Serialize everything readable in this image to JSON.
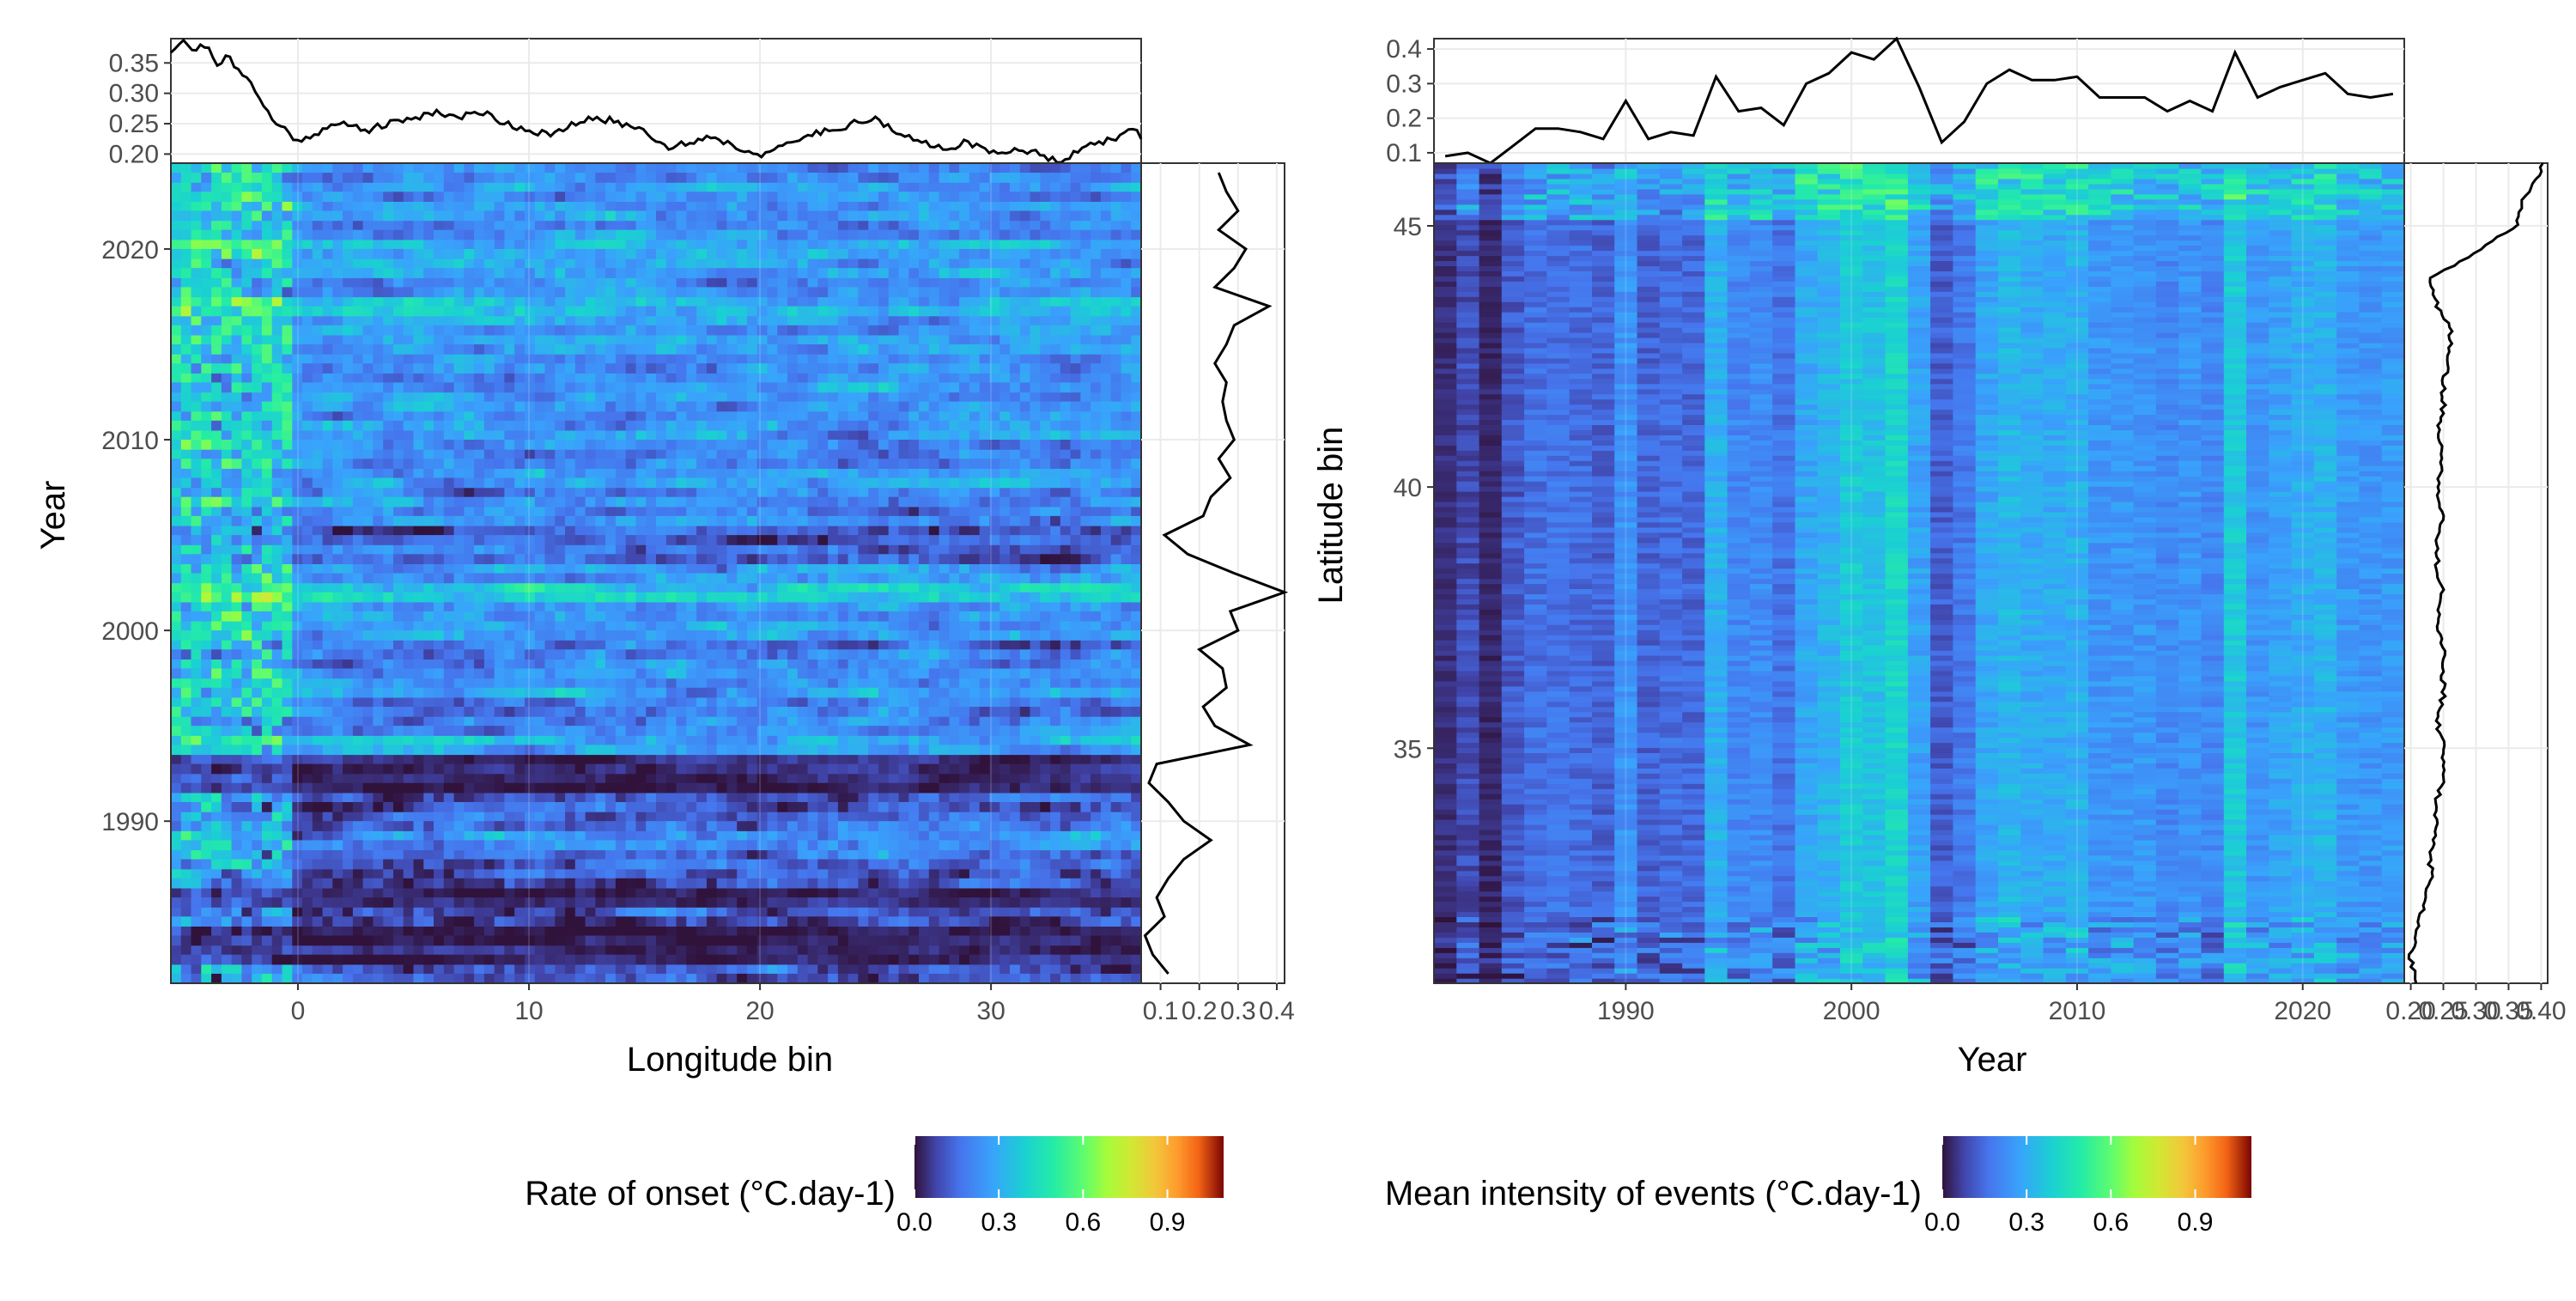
{
  "chart_data": [
    {
      "type": "heatmap",
      "panel": "left",
      "xlabel": "Longitude bin",
      "ylabel": "Year",
      "xlim": [
        -5.5,
        36.5
      ],
      "ylim": [
        1981.5,
        2024.5
      ],
      "x_ticks": [
        0,
        10,
        20,
        30
      ],
      "y_ticks": [
        1990,
        2000,
        2010,
        2020
      ],
      "colorscale": "turbo",
      "value_range": [
        0,
        1.1
      ],
      "grid": true,
      "top_marginal": {
        "type": "line",
        "description_axis": "mean by longitude bin",
        "y_ticks": [
          0.2,
          0.25,
          0.3,
          0.35
        ],
        "y_tick_labels": [
          "0.20",
          "0.25",
          "0.30",
          "0.35"
        ],
        "ylim": [
          0.185,
          0.39
        ],
        "x": [
          -5.5,
          -5,
          -4.5,
          -4,
          -3.5,
          -3,
          -2.5,
          -2,
          -1.5,
          -1,
          -0.5,
          0,
          0.5,
          1,
          2,
          3,
          4,
          5,
          6,
          7,
          8,
          9,
          10,
          11,
          12,
          13,
          14,
          15,
          16,
          17,
          18,
          19,
          20,
          21,
          22,
          23,
          24,
          25,
          26,
          27,
          28,
          29,
          30,
          31,
          32,
          33,
          34,
          35,
          36,
          36.5
        ],
        "y": [
          0.37,
          0.39,
          0.37,
          0.38,
          0.35,
          0.36,
          0.33,
          0.32,
          0.28,
          0.25,
          0.24,
          0.22,
          0.23,
          0.24,
          0.25,
          0.24,
          0.25,
          0.26,
          0.27,
          0.26,
          0.27,
          0.25,
          0.24,
          0.23,
          0.25,
          0.26,
          0.25,
          0.24,
          0.21,
          0.22,
          0.23,
          0.21,
          0.2,
          0.21,
          0.23,
          0.24,
          0.25,
          0.26,
          0.23,
          0.22,
          0.21,
          0.22,
          0.2,
          0.21,
          0.2,
          0.19,
          0.21,
          0.22,
          0.24,
          0.23
        ]
      },
      "right_marginal": {
        "type": "line",
        "description_axis": "mean by year",
        "x_ticks": [
          0.1,
          0.2,
          0.3,
          0.4
        ],
        "x_tick_labels": [
          "0.1",
          "0.2",
          "0.3",
          "0.4"
        ],
        "xlim": [
          0.05,
          0.42
        ],
        "years": [
          1982,
          1983,
          1984,
          1985,
          1986,
          1987,
          1988,
          1989,
          1990,
          1991,
          1992,
          1993,
          1994,
          1995,
          1996,
          1997,
          1998,
          1999,
          2000,
          2001,
          2002,
          2003,
          2004,
          2005,
          2006,
          2007,
          2008,
          2009,
          2010,
          2011,
          2012,
          2013,
          2014,
          2015,
          2016,
          2017,
          2018,
          2019,
          2020,
          2021,
          2022,
          2023,
          2024
        ],
        "values": [
          0.12,
          0.08,
          0.06,
          0.11,
          0.09,
          0.12,
          0.16,
          0.23,
          0.16,
          0.12,
          0.07,
          0.09,
          0.33,
          0.24,
          0.21,
          0.27,
          0.26,
          0.2,
          0.3,
          0.28,
          0.42,
          0.29,
          0.17,
          0.11,
          0.21,
          0.23,
          0.28,
          0.25,
          0.29,
          0.27,
          0.26,
          0.27,
          0.24,
          0.27,
          0.29,
          0.38,
          0.24,
          0.29,
          0.32,
          0.25,
          0.3,
          0.27,
          0.25
        ]
      },
      "legend": {
        "title": "Rate of onset (°C.day-1)",
        "ticks": [
          0.0,
          0.3,
          0.6,
          0.9
        ],
        "tick_labels": [
          "0.0",
          "0.3",
          "0.6",
          "0.9"
        ]
      }
    },
    {
      "type": "heatmap",
      "panel": "right",
      "xlabel": "Year",
      "ylabel": "Latitude bin",
      "xlim": [
        1981.5,
        2024.5
      ],
      "ylim": [
        30.5,
        46.2
      ],
      "x_ticks": [
        1990,
        2000,
        2010,
        2020
      ],
      "y_ticks": [
        35,
        40,
        45
      ],
      "colorscale": "turbo",
      "value_range": [
        0,
        1.1
      ],
      "grid": true,
      "year_means": [
        0.09,
        0.1,
        0.07,
        0.12,
        0.17,
        0.17,
        0.16,
        0.14,
        0.25,
        0.14,
        0.16,
        0.15,
        0.32,
        0.22,
        0.23,
        0.18,
        0.3,
        0.33,
        0.39,
        0.37,
        0.43,
        0.29,
        0.13,
        0.19,
        0.3,
        0.34,
        0.31,
        0.31,
        0.32,
        0.26,
        0.26,
        0.26,
        0.22,
        0.25,
        0.22,
        0.39,
        0.26,
        0.29,
        0.31,
        0.33,
        0.27,
        0.26,
        0.27
      ],
      "top_marginal": {
        "type": "line",
        "description_axis": "mean by year",
        "y_ticks": [
          0.1,
          0.2,
          0.3,
          0.4
        ],
        "y_tick_labels": [
          "0.1",
          "0.2",
          "0.3",
          "0.4"
        ],
        "ylim": [
          0.07,
          0.43
        ],
        "x": [
          1982,
          1983,
          1984,
          1985,
          1986,
          1987,
          1988,
          1989,
          1990,
          1991,
          1992,
          1993,
          1994,
          1995,
          1996,
          1997,
          1998,
          1999,
          2000,
          2001,
          2002,
          2003,
          2004,
          2005,
          2006,
          2007,
          2008,
          2009,
          2010,
          2011,
          2012,
          2013,
          2014,
          2015,
          2016,
          2017,
          2018,
          2019,
          2020,
          2021,
          2022,
          2023,
          2024
        ],
        "y": [
          0.09,
          0.1,
          0.07,
          0.12,
          0.17,
          0.17,
          0.16,
          0.14,
          0.25,
          0.14,
          0.16,
          0.15,
          0.32,
          0.22,
          0.23,
          0.18,
          0.3,
          0.33,
          0.39,
          0.37,
          0.43,
          0.29,
          0.13,
          0.19,
          0.3,
          0.34,
          0.31,
          0.31,
          0.32,
          0.26,
          0.26,
          0.26,
          0.22,
          0.25,
          0.22,
          0.39,
          0.26,
          0.29,
          0.31,
          0.33,
          0.27,
          0.26,
          0.27
        ]
      },
      "right_marginal": {
        "type": "line",
        "description_axis": "mean by latitude bin",
        "x_ticks": [
          0.2,
          0.25,
          0.3,
          0.35,
          0.4
        ],
        "x_tick_labels": [
          "0.20",
          "0.25",
          "0.30",
          "0.35",
          "0.40"
        ],
        "xlim": [
          0.19,
          0.41
        ],
        "lat": [
          30.5,
          31,
          31.5,
          32,
          32.5,
          33,
          33.5,
          34,
          34.5,
          35,
          35.5,
          36,
          36.5,
          37,
          37.5,
          38,
          38.5,
          39,
          39.5,
          40,
          40.5,
          41,
          41.5,
          42,
          42.5,
          43,
          43.5,
          44,
          44.5,
          45,
          45.5,
          46,
          46.2
        ],
        "values": [
          0.21,
          0.2,
          0.21,
          0.22,
          0.23,
          0.23,
          0.24,
          0.24,
          0.25,
          0.25,
          0.24,
          0.25,
          0.25,
          0.25,
          0.24,
          0.25,
          0.24,
          0.24,
          0.25,
          0.24,
          0.25,
          0.24,
          0.25,
          0.25,
          0.26,
          0.26,
          0.24,
          0.23,
          0.3,
          0.36,
          0.37,
          0.4,
          0.4
        ]
      },
      "legend": {
        "title": "Mean intensity of events (°C.day-1)",
        "ticks": [
          0.0,
          0.3,
          0.6,
          0.9
        ],
        "tick_labels": [
          "0.0",
          "0.3",
          "0.6",
          "0.9"
        ]
      }
    }
  ]
}
